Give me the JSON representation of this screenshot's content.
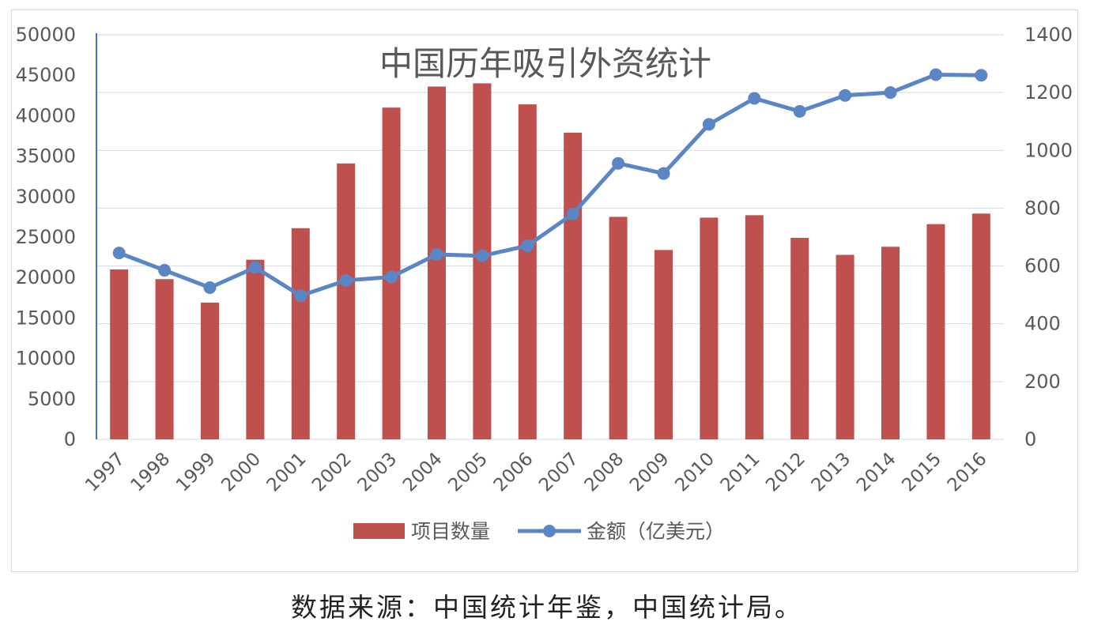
{
  "chart_data": {
    "type": "bar",
    "title": "中国历年吸引外资统计",
    "categories": [
      "1997",
      "1998",
      "1999",
      "2000",
      "2001",
      "2002",
      "2003",
      "2004",
      "2005",
      "2006",
      "2007",
      "2008",
      "2009",
      "2010",
      "2011",
      "2012",
      "2013",
      "2014",
      "2015",
      "2016"
    ],
    "left_axis": {
      "ylim": [
        0,
        50000
      ],
      "ticks": [
        "0",
        "5000",
        "10000",
        "15000",
        "20000",
        "25000",
        "30000",
        "35000",
        "40000",
        "45000",
        "50000"
      ]
    },
    "right_axis": {
      "ylim": [
        0,
        1400
      ],
      "ticks": [
        "0",
        "200",
        "400",
        "600",
        "800",
        "1000",
        "1200",
        "1400"
      ]
    },
    "series": [
      {
        "name": "项目数量",
        "type": "bar",
        "axis": "left",
        "color": "#c0504d",
        "values": [
          21000,
          19800,
          16900,
          22200,
          26100,
          34100,
          41000,
          43600,
          44000,
          41400,
          37900,
          27500,
          23400,
          27400,
          27700,
          24900,
          22800,
          23800,
          26600,
          27900
        ]
      },
      {
        "name": "金额（亿美元）",
        "type": "line",
        "axis": "right",
        "color": "#5b86c5",
        "values": [
          645,
          585,
          525,
          595,
          497,
          550,
          562,
          640,
          635,
          670,
          780,
          955,
          920,
          1090,
          1180,
          1135,
          1190,
          1200,
          1262,
          1260
        ]
      }
    ],
    "legend": "bottom",
    "grid": true
  },
  "source_note": "数据来源：中国统计年鉴，中国统计局。"
}
